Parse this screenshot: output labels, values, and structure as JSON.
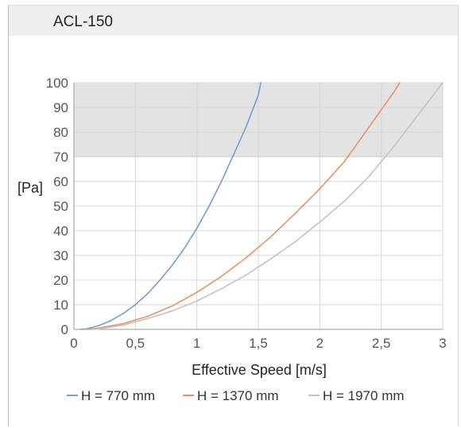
{
  "panel": {
    "title": "ACL-150"
  },
  "colors": {
    "zone_fill": "#e3e3e3",
    "grid": "#d6d6d6",
    "axis": "#9a9a9a",
    "tick_text": "#555555",
    "label_text": "#222222"
  },
  "chart_data": {
    "type": "line",
    "title": "",
    "xlabel": "Effective Speed [m/s]",
    "ylabel": "[Pa]",
    "xlim": [
      0,
      3
    ],
    "ylim": [
      0,
      100
    ],
    "x_ticks": [
      0,
      0.5,
      1,
      1.5,
      2,
      2.5,
      3
    ],
    "x_tick_labels": [
      "0",
      "0,5",
      "1",
      "1,5",
      "2",
      "2,5",
      "3"
    ],
    "y_ticks": [
      0,
      10,
      20,
      30,
      40,
      50,
      60,
      70,
      80,
      90,
      100
    ],
    "y_tick_labels": [
      "0",
      "10",
      "20",
      "30",
      "40",
      "50",
      "60",
      "70",
      "80",
      "90",
      "100"
    ],
    "grid": true,
    "shaded_band": {
      "y_from": 70,
      "y_to": 100
    },
    "legend_position": "bottom",
    "series": [
      {
        "name": "H = 770 mm",
        "color": "#6f9fcc",
        "x": [
          0.05,
          0.1,
          0.2,
          0.3,
          0.4,
          0.5,
          0.6,
          0.7,
          0.8,
          0.9,
          1.0,
          1.1,
          1.2,
          1.3,
          1.4,
          1.5,
          1.52
        ],
        "y": [
          0,
          0.2,
          1.5,
          3.5,
          6.4,
          10,
          14.5,
          20,
          26,
          33,
          41,
          50,
          60,
          71,
          82,
          95,
          100
        ]
      },
      {
        "name": "H = 1370 mm",
        "color": "#e59360",
        "x": [
          0.1,
          0.2,
          0.4,
          0.6,
          0.8,
          1.0,
          1.2,
          1.4,
          1.6,
          1.8,
          2.0,
          2.2,
          2.4,
          2.6,
          2.65
        ],
        "y": [
          0,
          0.5,
          2.3,
          5.3,
          9.5,
          15,
          21.5,
          29,
          37.5,
          47,
          57,
          68,
          82,
          96,
          100
        ]
      },
      {
        "name": "H = 1970 mm",
        "color": "#c2c2c2",
        "x": [
          0.15,
          0.2,
          0.4,
          0.6,
          0.8,
          1.0,
          1.2,
          1.4,
          1.6,
          1.8,
          2.0,
          2.2,
          2.4,
          2.6,
          2.8,
          3.0
        ],
        "y": [
          0,
          0.2,
          1.7,
          4.4,
          7.5,
          11.5,
          16.5,
          22,
          28.5,
          35.5,
          43.5,
          52,
          62,
          74,
          87,
          100
        ]
      }
    ]
  }
}
